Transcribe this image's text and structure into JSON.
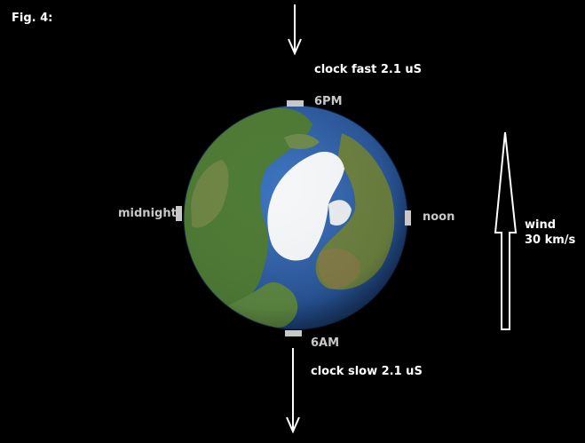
{
  "figure": {
    "label": "Fig. 4:"
  },
  "clocks": {
    "fast": "clock fast 2.1 uS",
    "slow": "clock slow 2.1 uS"
  },
  "times": {
    "pm6": "6PM",
    "am6": "6AM",
    "midnight": "midnight",
    "noon": "noon"
  },
  "wind": {
    "label": "wind",
    "speed": "30 km/s"
  },
  "colors": {
    "background": "#000000",
    "text_primary": "#ffffff",
    "text_secondary": "#c8c8c8",
    "ocean": "#2d5fa8",
    "land": "#4f7a36",
    "ice": "#f4f6f8"
  }
}
